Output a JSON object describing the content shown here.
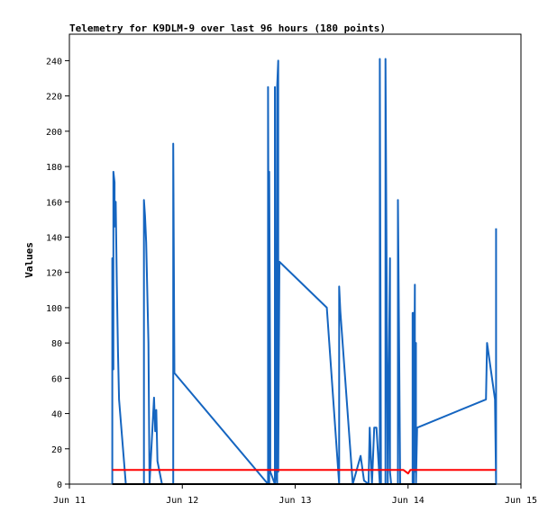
{
  "chart_data": {
    "type": "line",
    "title": "Telemetry for K9DLM-9 over last 96 hours (180 points)",
    "xlabel": "",
    "ylabel": "Values",
    "x_ticks": [
      "Jun 11",
      "Jun 12",
      "Jun 13",
      "Jun 14",
      "Jun 15"
    ],
    "x_domain_days": [
      11.0,
      15.0
    ],
    "ylim": [
      0,
      255
    ],
    "y_ticks": [
      0,
      20,
      40,
      60,
      80,
      100,
      120,
      140,
      160,
      180,
      200,
      220,
      240
    ],
    "grid": false,
    "legend": "none",
    "colors": {
      "series_blue": "#1565c0",
      "series_red": "#ff0000",
      "series_black": "#000000",
      "axis": "#000000"
    },
    "series": [
      {
        "color": "#1565c0",
        "x_days": [
          11.38,
          11.38,
          11.39,
          11.39,
          11.4,
          11.4,
          11.41,
          11.42,
          11.43,
          11.44,
          11.5,
          11.51,
          11.66,
          11.66,
          11.67,
          11.68,
          11.7,
          11.71,
          11.75,
          11.76,
          11.77,
          11.78,
          11.82,
          11.92,
          11.92,
          11.93,
          12.76,
          12.76,
          12.77,
          12.77,
          12.78,
          12.78,
          12.82,
          12.82,
          12.83,
          12.84,
          12.84,
          12.85,
          12.85,
          12.86,
          13.28,
          13.39,
          13.39,
          13.39,
          13.4,
          13.51,
          13.58,
          13.61,
          13.65,
          13.66,
          13.68,
          13.7,
          13.72,
          13.75,
          13.75,
          13.76,
          13.8,
          13.8,
          13.82,
          13.84,
          13.84,
          13.85,
          13.87,
          13.91,
          13.91,
          13.92,
          13.93,
          14.04,
          14.04,
          14.05,
          14.05,
          14.06,
          14.06,
          14.07,
          14.07,
          14.08,
          14.69,
          14.69,
          14.7,
          14.77,
          14.78,
          14.78
        ],
        "y": [
          0,
          128,
          65,
          177,
          171,
          146,
          160,
          114,
          75,
          48,
          0,
          0,
          0,
          161,
          152,
          137,
          80,
          0,
          49,
          30,
          42,
          13,
          0,
          0,
          193,
          63,
          0,
          225,
          0,
          177,
          40,
          7,
          0,
          225,
          7,
          0,
          225,
          240,
          7,
          126,
          100,
          0,
          0,
          112,
          98,
          0,
          16,
          2,
          0,
          32,
          0,
          32,
          32,
          0,
          241,
          0,
          0,
          241,
          0,
          128,
          7,
          0,
          0,
          0,
          161,
          88,
          0,
          0,
          97,
          97,
          0,
          113,
          7,
          80,
          0,
          32,
          48,
          48,
          80,
          48,
          0,
          145
        ]
      },
      {
        "color": "#ff0000",
        "x_days": [
          11.38,
          13.96,
          14.0,
          14.02,
          14.78
        ],
        "y": [
          8,
          8,
          6,
          8,
          8
        ]
      },
      {
        "color": "#000000",
        "x_days": [
          11.38,
          14.78
        ],
        "y": [
          0,
          0
        ]
      }
    ]
  }
}
